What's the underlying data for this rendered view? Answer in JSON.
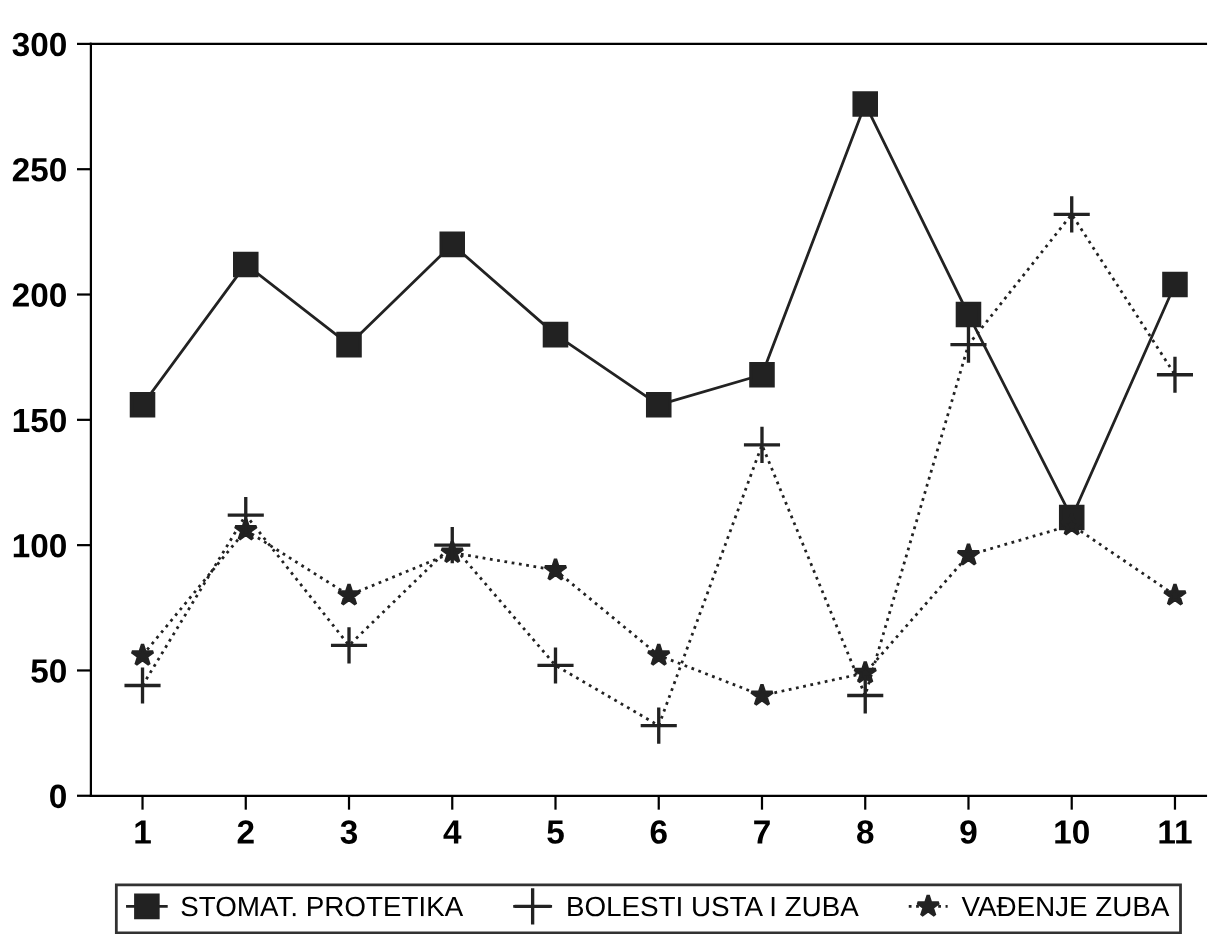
{
  "chart_data": {
    "type": "line",
    "x": [
      1,
      2,
      3,
      4,
      5,
      6,
      7,
      8,
      9,
      10,
      11
    ],
    "series": [
      {
        "name": "STOMAT. PROTETIKA",
        "color": "#222222",
        "marker": "square",
        "line_style": "solid",
        "values": [
          156,
          212,
          180,
          220,
          184,
          156,
          168,
          276,
          192,
          111,
          204
        ]
      },
      {
        "name": "BOLESTI USTA I ZUBA",
        "color": "#222222",
        "marker": "cross",
        "line_style": "dotted",
        "values": [
          44,
          112,
          60,
          100,
          52,
          28,
          140,
          40,
          180,
          232,
          168
        ]
      },
      {
        "name": "VAĐENJE ZUBA",
        "color": "#222222",
        "marker": "star",
        "line_style": "dotted",
        "values": [
          56,
          106,
          80,
          97,
          90,
          56,
          40,
          49,
          96,
          108,
          80
        ]
      }
    ],
    "xlim": [
      0.5,
      11.3
    ],
    "xticks": [
      1,
      2,
      3,
      4,
      5,
      6,
      7,
      8,
      9,
      10,
      11
    ],
    "ylim": [
      0,
      300
    ],
    "yticks": [
      0,
      50,
      100,
      150,
      200,
      250,
      300
    ],
    "grid": false,
    "legend": "bottom"
  }
}
